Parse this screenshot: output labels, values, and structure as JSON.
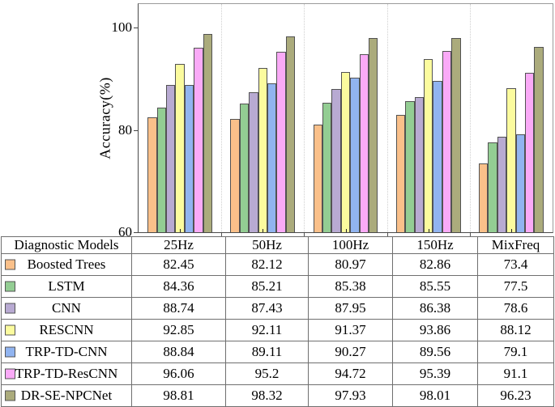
{
  "chart_data": {
    "type": "bar",
    "title": "",
    "xlabel": "",
    "ylabel": "Accuracy(%)",
    "ylim": [
      60,
      104.6
    ],
    "yticks": [
      60,
      80,
      100
    ],
    "grid": "vertical dotted separators between category groups",
    "legend_position": "table below chart (color swatches in first column)",
    "categories": [
      "25Hz",
      "50Hz",
      "100Hz",
      "150Hz",
      "MixFreq"
    ],
    "series": [
      {
        "name": "Boosted Trees",
        "color": "#FAC08A",
        "values": [
          82.45,
          82.12,
          80.97,
          82.86,
          73.4
        ]
      },
      {
        "name": "LSTM",
        "color": "#93CD93",
        "values": [
          84.36,
          85.21,
          85.38,
          85.55,
          77.5
        ]
      },
      {
        "name": "CNN",
        "color": "#B8AAD2",
        "values": [
          88.74,
          87.43,
          87.95,
          86.38,
          78.6
        ]
      },
      {
        "name": "RESCNN",
        "color": "#FBFB9E",
        "values": [
          92.85,
          92.11,
          91.37,
          93.86,
          88.12
        ]
      },
      {
        "name": "TRP-TD-CNN",
        "color": "#91B4F0",
        "values": [
          88.84,
          89.11,
          90.27,
          89.56,
          79.1
        ]
      },
      {
        "name": "TRP-TD-ResCNN",
        "color": "#FAAAF7",
        "values": [
          96.06,
          95.2,
          94.72,
          95.39,
          91.1
        ]
      },
      {
        "name": "DR-SE-NPCNet",
        "color": "#ABAB7C",
        "values": [
          98.81,
          98.32,
          97.93,
          98.01,
          96.23
        ]
      }
    ]
  },
  "table": {
    "model_header": "Diagnostic Models"
  }
}
